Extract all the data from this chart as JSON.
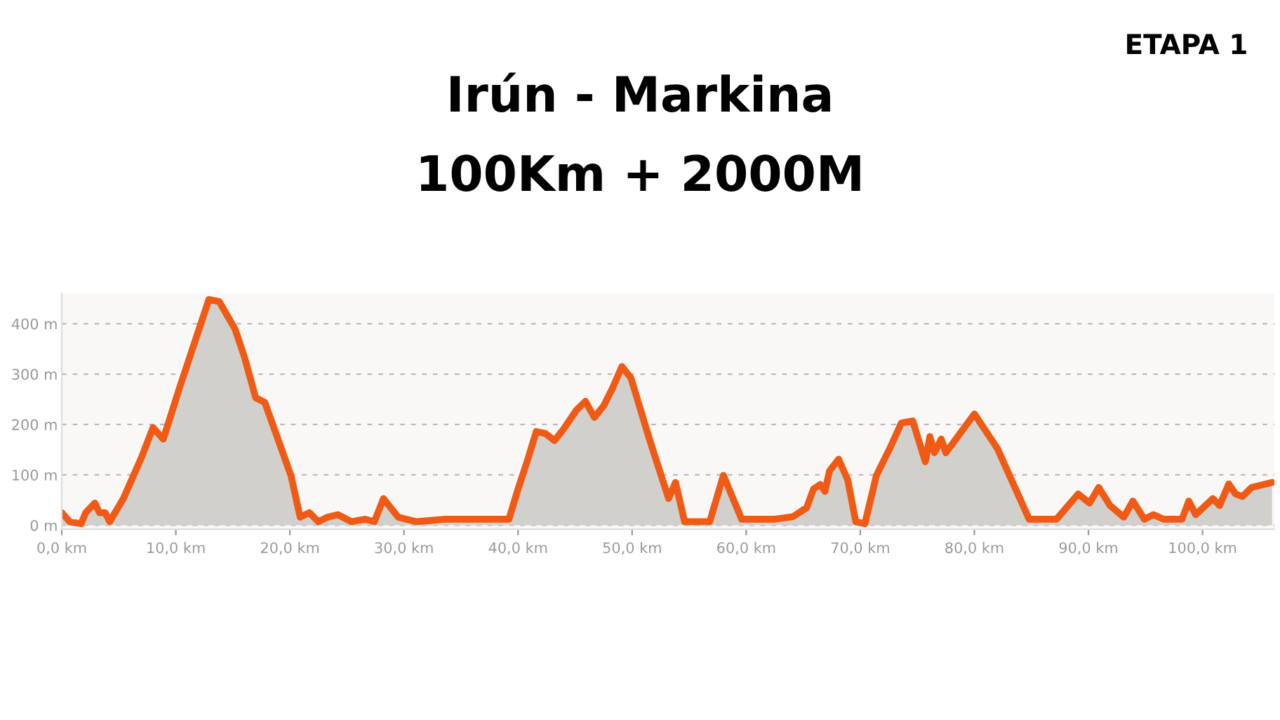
{
  "chart_data": {
    "type": "area",
    "title": "Irún - Markina",
    "subtitle": "100Km + 2000M",
    "annotations": [
      "ETAPA 1"
    ],
    "x": [
      0,
      0.7,
      1.7,
      2.1,
      2.9,
      3.3,
      3.8,
      4.2,
      5.4,
      7.0,
      8.0,
      8.9,
      10.3,
      11.9,
      12.9,
      13.8,
      15.2,
      16.0,
      17.0,
      17.8,
      20.1,
      20.9,
      21.7,
      22.5,
      23.3,
      24.2,
      25.4,
      26.6,
      27.4,
      28.2,
      29.5,
      31.1,
      33.6,
      36.2,
      39.2,
      40.0,
      40.8,
      41.6,
      42.4,
      43.2,
      44.0,
      45.1,
      45.9,
      46.7,
      47.5,
      48.3,
      49.1,
      49.9,
      51.5,
      53.2,
      53.8,
      54.6,
      56.8,
      58.0,
      59.6,
      62.5,
      64.1,
      65.3,
      65.9,
      66.5,
      66.9,
      67.3,
      68.1,
      68.9,
      69.6,
      70.4,
      71.4,
      72.0,
      72.6,
      73.6,
      74.6,
      75.7,
      76.1,
      76.5,
      77.1,
      77.5,
      80.0,
      82.0,
      84.8,
      87.2,
      89.1,
      90.1,
      90.9,
      91.9,
      93.1,
      93.9,
      94.9,
      95.7,
      96.6,
      98.2,
      98.8,
      99.4,
      100.9,
      101.5,
      102.3,
      102.9,
      103.5,
      104.3,
      106.1
    ],
    "series": [
      {
        "color": "#f05a14",
        "values": [
          25,
          7,
          3,
          25,
          44,
          25,
          25,
          7,
          53,
          135,
          194,
          171,
          271,
          380,
          448,
          444,
          389,
          335,
          253,
          244,
          98,
          16,
          25,
          7,
          16,
          21,
          7,
          12,
          7,
          53,
          16,
          7,
          12,
          12,
          12,
          72,
          127,
          186,
          182,
          168,
          191,
          228,
          246,
          214,
          237,
          273,
          315,
          292,
          172,
          53,
          85,
          7,
          7,
          99,
          12,
          12,
          17,
          35,
          72,
          81,
          67,
          108,
          131,
          90,
          7,
          3,
          98,
          126,
          153,
          203,
          207,
          126,
          176,
          144,
          171,
          144,
          221,
          153,
          12,
          12,
          62,
          44,
          75,
          39,
          16,
          48,
          12,
          21,
          12,
          12,
          48,
          21,
          53,
          39,
          82,
          62,
          57,
          75,
          85
        ]
      }
    ],
    "xlim": [
      0,
      106.3
    ],
    "ylim": [
      -8,
      460
    ],
    "xticks": [
      {
        "value": 0,
        "label": "0,0 km"
      },
      {
        "value": 10,
        "label": "10,0 km"
      },
      {
        "value": 20,
        "label": "20,0 km"
      },
      {
        "value": 30,
        "label": "30,0 km"
      },
      {
        "value": 40,
        "label": "40,0 km"
      },
      {
        "value": 50,
        "label": "50,0 km"
      },
      {
        "value": 60,
        "label": "60,0 km"
      },
      {
        "value": 70,
        "label": "70,0 km"
      },
      {
        "value": 80,
        "label": "80,0 km"
      },
      {
        "value": 90,
        "label": "90,0 km"
      },
      {
        "value": 100,
        "label": "100,0 km"
      }
    ],
    "yticks": [
      {
        "value": 0,
        "label": "0 m"
      },
      {
        "value": 100,
        "label": "100 m"
      },
      {
        "value": 200,
        "label": "200 m"
      },
      {
        "value": 300,
        "label": "300 m"
      },
      {
        "value": 400,
        "label": "400 m"
      }
    ],
    "grid": "y",
    "line_style": "solid"
  }
}
